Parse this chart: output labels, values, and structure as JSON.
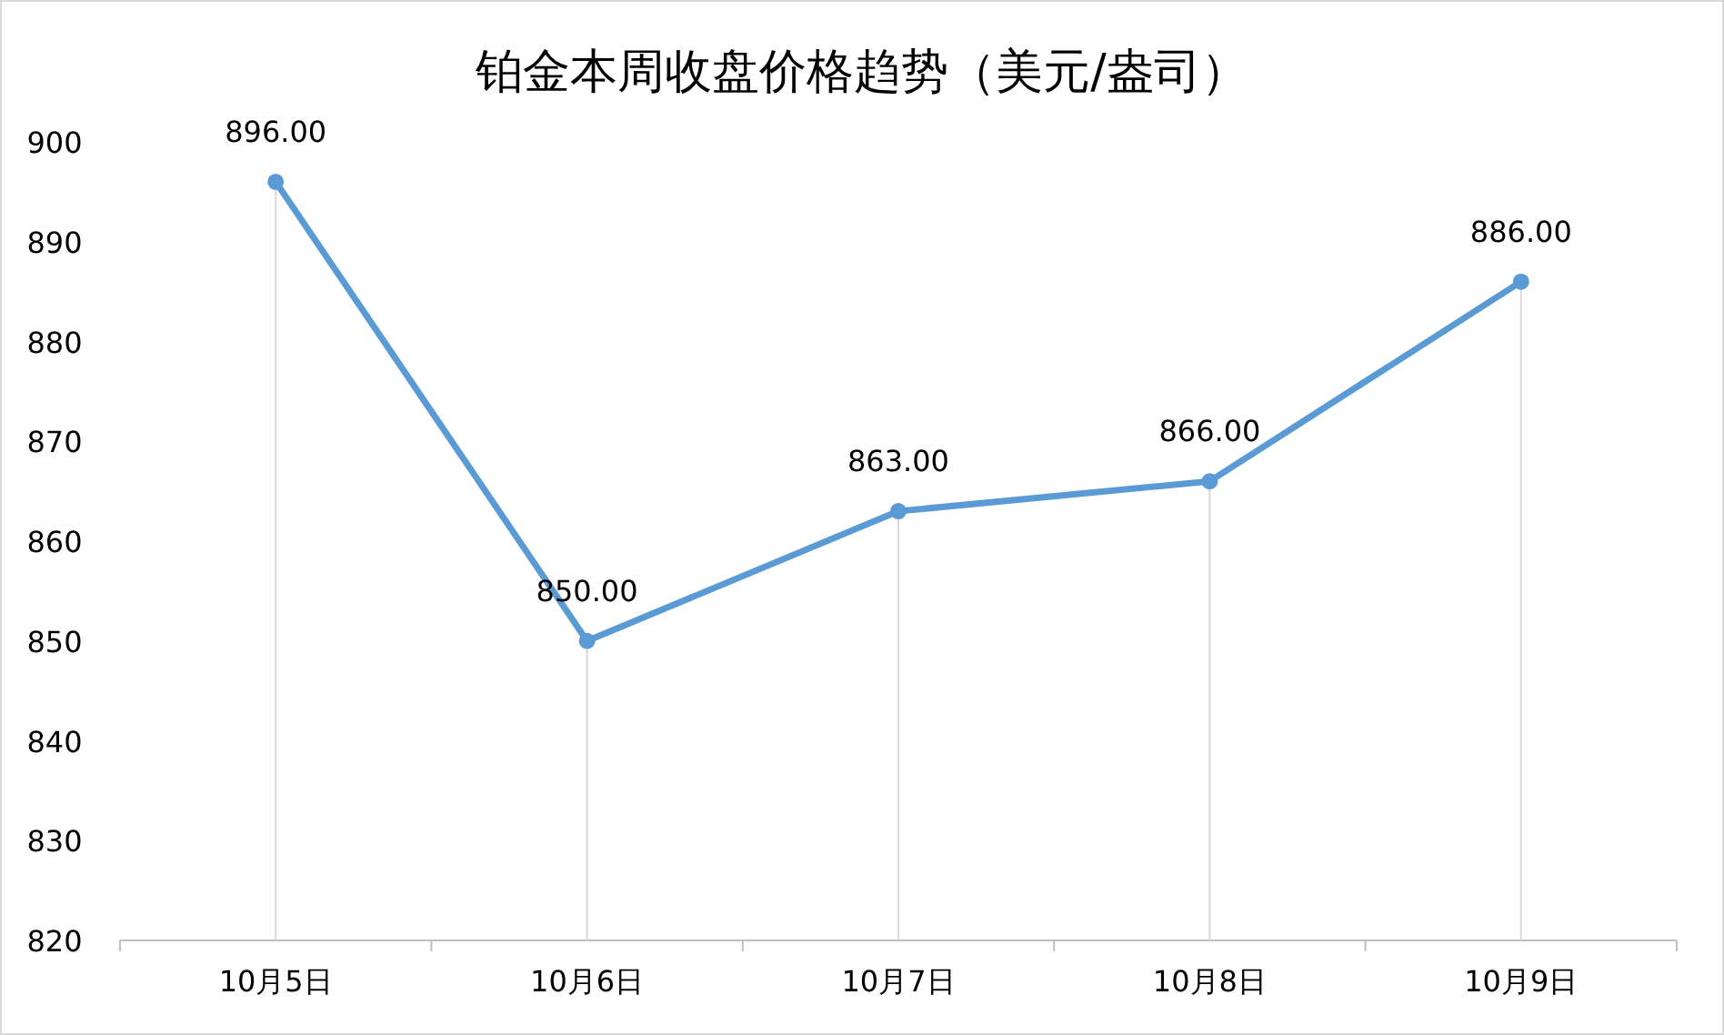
{
  "chart_data": {
    "type": "line",
    "title": "铂金本周收盘价格趋势（美元/盎司）",
    "categories": [
      "10月5日",
      "10月6日",
      "10月7日",
      "10月8日",
      "10月9日"
    ],
    "values": [
      896,
      850,
      863,
      866,
      886
    ],
    "value_labels": [
      "896.00",
      "850.00",
      "863.00",
      "866.00",
      "886.00"
    ],
    "color": "#5b9bd5",
    "marker": "circle",
    "line_style": "solid",
    "ylim": [
      820,
      900
    ],
    "yticks": [
      820,
      830,
      840,
      850,
      860,
      870,
      880,
      890,
      900
    ],
    "grid": "x"
  }
}
